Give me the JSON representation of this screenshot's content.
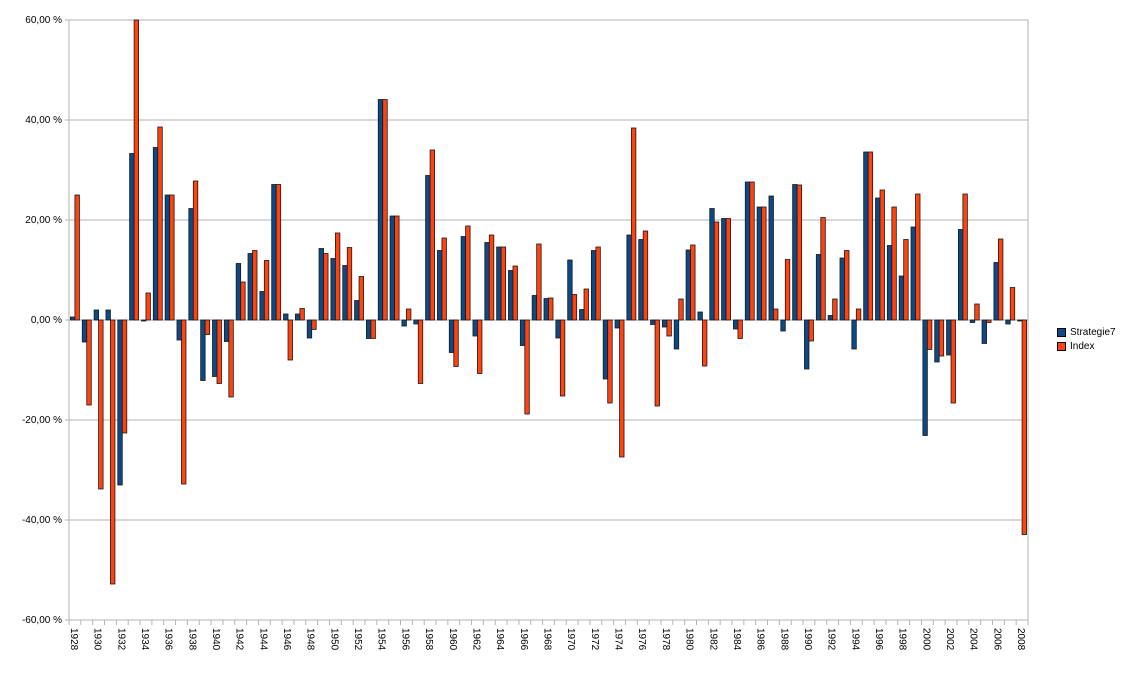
{
  "chart_data": {
    "type": "bar",
    "title": "",
    "xlabel": "",
    "ylabel": "",
    "ylim": [
      -60,
      60
    ],
    "y_ticks": [
      "60,00 %",
      "40,00 %",
      "20,00 %",
      "0,00 %",
      "-20,00 %",
      "-40,00 %",
      "-60,00 %"
    ],
    "y_tick_values": [
      60,
      40,
      20,
      0,
      -20,
      -40,
      -60
    ],
    "grid": true,
    "legend_position": "right",
    "x_label_every": 2,
    "categories": [
      "1928",
      "1929",
      "1930",
      "1931",
      "1932",
      "1933",
      "1934",
      "1935",
      "1936",
      "1937",
      "1938",
      "1939",
      "1940",
      "1941",
      "1942",
      "1943",
      "1944",
      "1945",
      "1946",
      "1947",
      "1948",
      "1949",
      "1950",
      "1951",
      "1952",
      "1953",
      "1954",
      "1955",
      "1956",
      "1957",
      "1958",
      "1959",
      "1960",
      "1961",
      "1962",
      "1963",
      "1964",
      "1965",
      "1966",
      "1967",
      "1968",
      "1969",
      "1970",
      "1971",
      "1972",
      "1973",
      "1974",
      "1975",
      "1976",
      "1977",
      "1978",
      "1979",
      "1980",
      "1981",
      "1982",
      "1983",
      "1984",
      "1985",
      "1986",
      "1987",
      "1988",
      "1989",
      "1990",
      "1991",
      "1992",
      "1993",
      "1994",
      "1995",
      "1996",
      "1997",
      "1998",
      "1999",
      "2000",
      "2001",
      "2002",
      "2003",
      "2004",
      "2005",
      "2006",
      "2007",
      "2008"
    ],
    "series": [
      {
        "name": "Strategie7",
        "color": "#0b4a86",
        "values": [
          0.6,
          -4.4,
          2.0,
          2.0,
          -33.0,
          33.3,
          -0.2,
          34.5,
          25.0,
          -4.0,
          22.3,
          -12.1,
          -11.3,
          -4.3,
          11.3,
          13.3,
          5.7,
          27.1,
          1.2,
          1.2,
          -3.6,
          14.3,
          12.3,
          10.9,
          3.9,
          -3.7,
          44.1,
          20.8,
          -1.2,
          -0.8,
          28.9,
          13.9,
          -6.5,
          16.7,
          -3.2,
          15.5,
          14.6,
          9.9,
          -5.1,
          4.9,
          4.3,
          -3.6,
          12.0,
          2.1,
          13.9,
          -11.8,
          -1.6,
          17.0,
          16.1,
          -0.9,
          -1.4,
          -5.8,
          14.0,
          1.6,
          22.3,
          20.3,
          -1.8,
          27.6,
          22.6,
          24.8,
          -2.2,
          27.1,
          -9.8,
          13.1,
          0.9,
          12.4,
          -5.8,
          33.6,
          24.4,
          14.9,
          8.8,
          18.6,
          -23.1,
          -8.4,
          -7.0,
          18.1,
          -0.5,
          -4.7,
          11.5,
          -0.8,
          -0.2
        ]
      },
      {
        "name": "Index",
        "color": "#ff420e",
        "values": [
          25.0,
          -17.0,
          -33.8,
          -52.8,
          -22.6,
          60.0,
          5.4,
          38.6,
          25.0,
          -32.8,
          27.8,
          -2.9,
          -12.7,
          -15.4,
          7.6,
          13.9,
          11.9,
          27.1,
          -8.0,
          2.3,
          -1.9,
          13.3,
          17.4,
          14.5,
          8.7,
          -3.7,
          44.1,
          20.8,
          2.2,
          -12.7,
          34.0,
          16.4,
          -9.3,
          18.8,
          -10.7,
          17.0,
          14.6,
          10.8,
          -18.8,
          15.2,
          4.4,
          -15.2,
          5.1,
          6.2,
          14.6,
          -16.6,
          -27.4,
          38.4,
          17.8,
          -17.2,
          -3.2,
          4.2,
          15.0,
          -9.2,
          19.6,
          20.3,
          -3.7,
          27.6,
          22.6,
          2.2,
          12.1,
          27.0,
          -4.2,
          20.5,
          4.2,
          13.9,
          2.2,
          33.6,
          26.0,
          22.6,
          16.1,
          25.2,
          -5.9,
          -7.2,
          -16.6,
          25.2,
          3.2,
          -0.5,
          16.2,
          6.5,
          -42.9
        ]
      }
    ]
  }
}
